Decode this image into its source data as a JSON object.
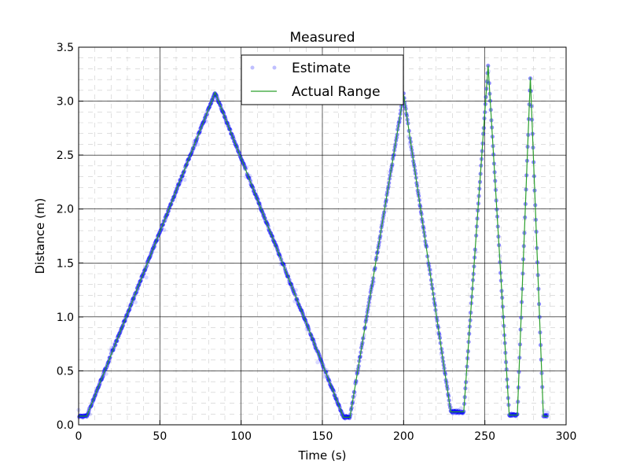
{
  "chart_data": {
    "type": "line",
    "title": "Measured",
    "xlabel": "Time (s)",
    "ylabel": "Distance (m)",
    "xlim": [
      0,
      300
    ],
    "ylim": [
      0,
      3.5
    ],
    "x_ticks": [
      0,
      50,
      100,
      150,
      200,
      250,
      300
    ],
    "y_ticks": [
      0.0,
      0.5,
      1.0,
      1.5,
      2.0,
      2.5,
      3.0,
      3.5
    ],
    "x_tick_labels": [
      "0",
      "50",
      "100",
      "150",
      "200",
      "250",
      "300"
    ],
    "y_tick_labels": [
      "0.0",
      "0.5",
      "1.0",
      "1.5",
      "2.0",
      "2.5",
      "3.0",
      "3.5"
    ],
    "grid": true,
    "minor_grid": true,
    "legend_position": "top-center",
    "series": [
      {
        "name": "Actual Range",
        "kind": "line",
        "color": "#2ca02c",
        "x": [
          0,
          5,
          84,
          163,
          167,
          200,
          229,
          237,
          252,
          265,
          270,
          278,
          286,
          289
        ],
        "y": [
          0.08,
          0.08,
          3.08,
          0.07,
          0.07,
          3.06,
          0.12,
          0.12,
          3.33,
          0.09,
          0.09,
          3.22,
          0.08,
          0.08
        ]
      },
      {
        "name": "Estimate",
        "kind": "scatter",
        "color": "#0000ff",
        "x": [
          0,
          5,
          84,
          163,
          167,
          200,
          229,
          237,
          252,
          265,
          270,
          278,
          286,
          289
        ],
        "y": [
          0.08,
          0.08,
          3.08,
          0.07,
          0.07,
          3.06,
          0.12,
          0.12,
          3.33,
          0.09,
          0.09,
          3.22,
          0.08,
          0.08
        ]
      }
    ]
  }
}
